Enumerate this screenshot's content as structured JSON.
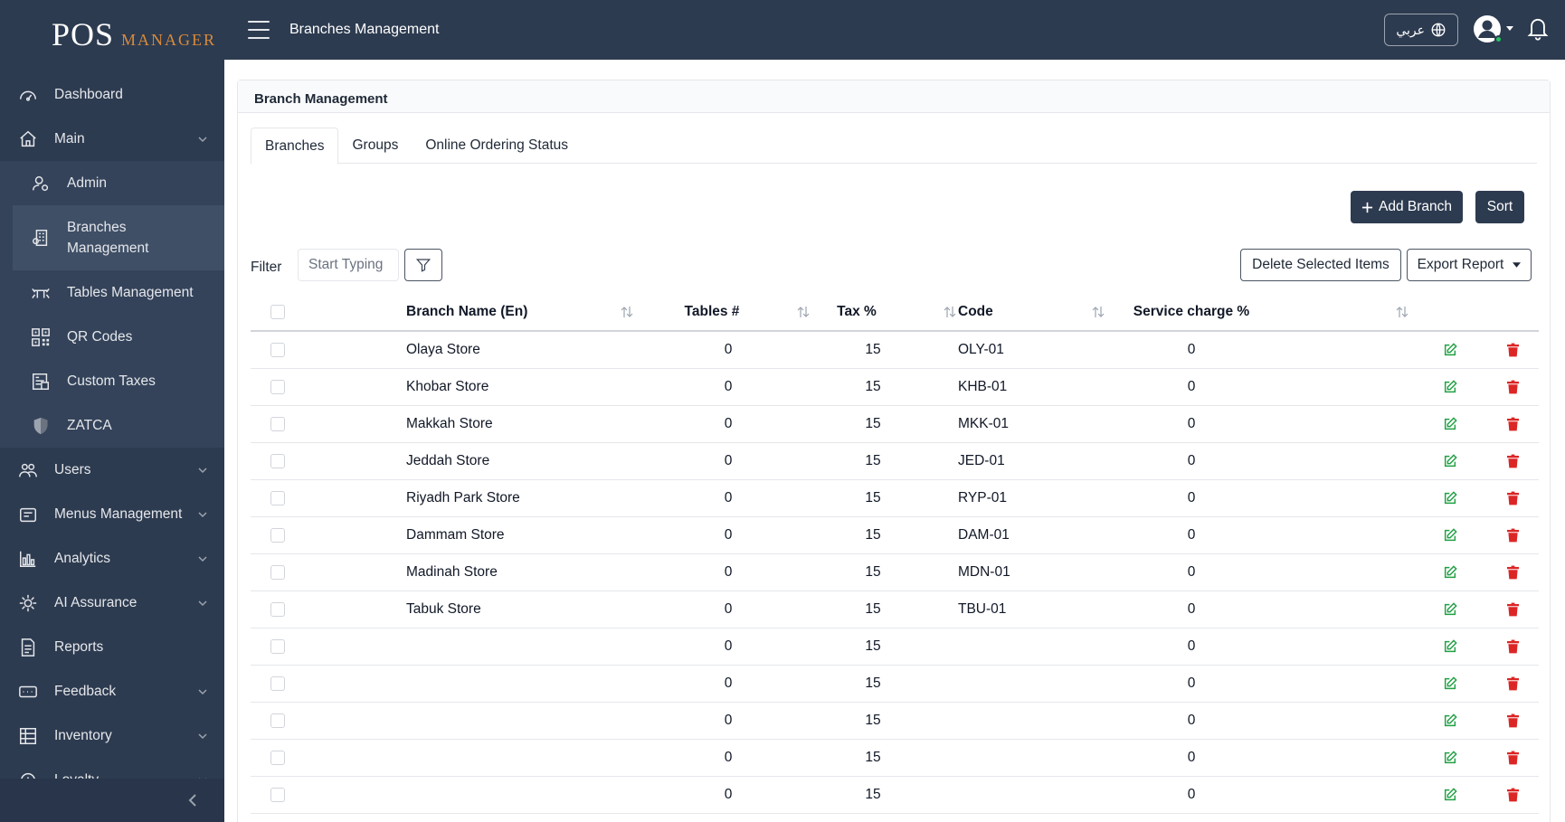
{
  "brand": {
    "pos": "POS",
    "manager": "MANAGER"
  },
  "sidebar": {
    "items": [
      {
        "label": "Dashboard",
        "icon": "gauge-icon",
        "chevron": false
      },
      {
        "label": "Main",
        "icon": "home-icon",
        "chevron": true
      },
      {
        "label": "Users",
        "icon": "users-icon",
        "chevron": true
      },
      {
        "label": "Menus Management",
        "icon": "menu-book-icon",
        "chevron": true
      },
      {
        "label": "Analytics",
        "icon": "bar-chart-icon",
        "chevron": true
      },
      {
        "label": "AI Assurance",
        "icon": "ai-chip-icon",
        "chevron": true
      },
      {
        "label": "Reports",
        "icon": "report-icon",
        "chevron": false
      },
      {
        "label": "Feedback",
        "icon": "feedback-icon",
        "chevron": true
      },
      {
        "label": "Inventory",
        "icon": "inventory-icon",
        "chevron": true
      },
      {
        "label": "Loyalty",
        "icon": "loyalty-icon",
        "chevron": true
      }
    ],
    "sub_items": [
      {
        "label": "Admin",
        "icon": "admin-icon"
      },
      {
        "label": "Branches Management",
        "icon": "branch-icon",
        "active": true
      },
      {
        "label": "Tables Management",
        "icon": "table-icon"
      },
      {
        "label": "QR Codes",
        "icon": "qr-code-icon"
      },
      {
        "label": "Custom Taxes",
        "icon": "tax-icon"
      },
      {
        "label": "ZATCA",
        "icon": "shield-icon"
      }
    ]
  },
  "topbar": {
    "title": "Branches Management",
    "lang_label": "عربي"
  },
  "panel": {
    "title": "Branch Management"
  },
  "tabs": [
    {
      "label": "Branches",
      "active": true
    },
    {
      "label": "Groups",
      "active": false
    },
    {
      "label": "Online Ordering Status",
      "active": false
    }
  ],
  "actions": {
    "add_branch": "Add Branch",
    "sort": "Sort",
    "delete_selected": "Delete Selected Items",
    "export_report": "Export Report"
  },
  "filter": {
    "label": "Filter",
    "placeholder": "Start Typing"
  },
  "table": {
    "headers": {
      "name": "Branch Name (En)",
      "tables": "Tables #",
      "tax": "Tax %",
      "code": "Code",
      "service": "Service charge %"
    },
    "rows": [
      {
        "name": "Olaya Store",
        "tables": "0",
        "tax": "15",
        "code": "OLY-01",
        "service": "0"
      },
      {
        "name": "Khobar Store",
        "tables": "0",
        "tax": "15",
        "code": "KHB-01",
        "service": "0"
      },
      {
        "name": "Makkah Store",
        "tables": "0",
        "tax": "15",
        "code": "MKK-01",
        "service": "0"
      },
      {
        "name": "Jeddah Store",
        "tables": "0",
        "tax": "15",
        "code": "JED-01",
        "service": "0"
      },
      {
        "name": "Riyadh Park Store",
        "tables": "0",
        "tax": "15",
        "code": "RYP-01",
        "service": "0"
      },
      {
        "name": "Dammam Store",
        "tables": "0",
        "tax": "15",
        "code": "DAM-01",
        "service": "0"
      },
      {
        "name": "Madinah Store",
        "tables": "0",
        "tax": "15",
        "code": "MDN-01",
        "service": "0"
      },
      {
        "name": "Tabuk Store",
        "tables": "0",
        "tax": "15",
        "code": "TBU-01",
        "service": "0"
      },
      {
        "name": "",
        "tables": "0",
        "tax": "15",
        "code": "",
        "service": "0"
      },
      {
        "name": "",
        "tables": "0",
        "tax": "15",
        "code": "",
        "service": "0"
      },
      {
        "name": "",
        "tables": "0",
        "tax": "15",
        "code": "",
        "service": "0"
      },
      {
        "name": "",
        "tables": "0",
        "tax": "15",
        "code": "",
        "service": "0"
      },
      {
        "name": "",
        "tables": "0",
        "tax": "15",
        "code": "",
        "service": "0"
      }
    ]
  },
  "colors": {
    "sidebar": "#2d3b50",
    "accent": "#d98a3a",
    "edit": "#22a045",
    "delete": "#dc2626",
    "online": "#22c55e"
  }
}
